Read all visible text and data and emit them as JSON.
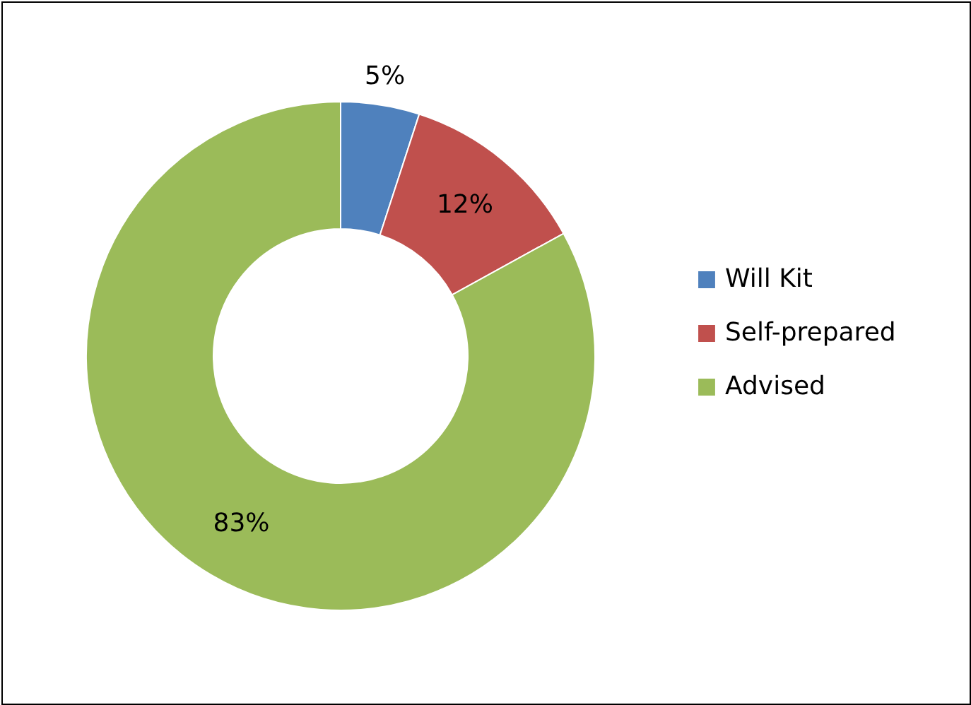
{
  "chart_data": {
    "type": "donut",
    "categories": [
      "Will Kit",
      "Self-prepared",
      "Advised"
    ],
    "values": [
      5,
      12,
      83
    ],
    "colors": [
      "#4f81bd",
      "#c0504d",
      "#9bbb59"
    ],
    "value_labels": [
      "5%",
      "12%",
      "83%"
    ],
    "legend": "right"
  }
}
